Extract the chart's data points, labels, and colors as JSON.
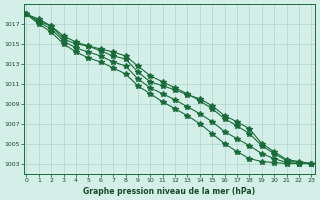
{
  "title": "Graphe pression niveau de la mer (hPa)",
  "background_color": "#d4eee8",
  "grid_color": "#b0d4cc",
  "line_color": "#1a6b3a",
  "xlim": [
    0,
    23
  ],
  "ylim": [
    1002,
    1019
  ],
  "yticks": [
    1003,
    1005,
    1007,
    1009,
    1011,
    1013,
    1015,
    1017
  ],
  "xticks": [
    0,
    1,
    2,
    3,
    4,
    5,
    6,
    7,
    8,
    9,
    10,
    11,
    12,
    13,
    14,
    15,
    16,
    17,
    18,
    19,
    20,
    21,
    22,
    23
  ],
  "line1": [
    1018.0,
    1017.5,
    1016.8,
    1015.5,
    1015.0,
    1014.8,
    1014.3,
    1013.8,
    1013.5,
    1012.2,
    1011.2,
    1010.8,
    1010.4,
    1009.9,
    1009.5,
    1008.8,
    1007.8,
    1007.2,
    1006.5,
    1005.0,
    1004.2,
    1003.4,
    1003.2,
    1003.0
  ],
  "line2": [
    1018.0,
    1017.2,
    1016.5,
    1015.3,
    1014.6,
    1014.2,
    1013.8,
    1013.2,
    1012.8,
    1011.5,
    1010.6,
    1010.0,
    1009.4,
    1008.7,
    1008.0,
    1007.2,
    1006.2,
    1005.5,
    1004.8,
    1004.0,
    1003.5,
    1003.1,
    1003.0,
    1003.0
  ],
  "line3": [
    1018.0,
    1017.0,
    1016.2,
    1015.0,
    1014.2,
    1013.6,
    1013.2,
    1012.6,
    1012.0,
    1010.8,
    1010.0,
    1009.2,
    1008.5,
    1007.8,
    1007.0,
    1006.0,
    1005.0,
    1004.2,
    1003.5,
    1003.2,
    1003.1,
    1003.0,
    1003.0,
    1003.0
  ],
  "line4": [
    1018.0,
    1017.3,
    1016.8,
    1015.8,
    1015.2,
    1014.8,
    1014.5,
    1014.2,
    1013.8,
    1012.8,
    1011.8,
    1011.2,
    1010.6,
    1010.0,
    1009.3,
    1008.5,
    1007.5,
    1006.8,
    1006.0,
    1004.8,
    1004.0,
    1003.3,
    1003.1,
    1003.0
  ]
}
